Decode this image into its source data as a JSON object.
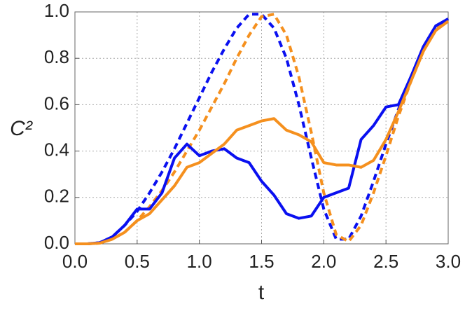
{
  "chart_data": {
    "type": "line",
    "xlabel": "t",
    "ylabel": "C²",
    "x": [
      0.0,
      0.1,
      0.2,
      0.3,
      0.4,
      0.5,
      0.6,
      0.7,
      0.8,
      0.9,
      1.0,
      1.1,
      1.2,
      1.3,
      1.4,
      1.5,
      1.6,
      1.7,
      1.8,
      1.9,
      2.0,
      2.1,
      2.2,
      2.3,
      2.4,
      2.5,
      2.6,
      2.7,
      2.8,
      2.9,
      3.0
    ],
    "series": [
      {
        "color": "#0a10f0",
        "dashed": true,
        "values": [
          0,
          0,
          0.005,
          0.03,
          0.08,
          0.14,
          0.22,
          0.31,
          0.41,
          0.52,
          0.63,
          0.74,
          0.84,
          0.93,
          0.99,
          0.99,
          0.93,
          0.8,
          0.6,
          0.37,
          0.15,
          0.02,
          0.02,
          0.12,
          0.27,
          0.43,
          0.58,
          0.72,
          0.84,
          0.93,
          0.97
        ]
      },
      {
        "color": "#f5901e",
        "dashed": true,
        "values": [
          0,
          0,
          0.003,
          0.02,
          0.05,
          0.1,
          0.16,
          0.23,
          0.31,
          0.4,
          0.49,
          0.59,
          0.69,
          0.8,
          0.9,
          0.98,
          0.99,
          0.9,
          0.72,
          0.48,
          0.22,
          0.04,
          0.01,
          0.08,
          0.22,
          0.38,
          0.55,
          0.7,
          0.83,
          0.93,
          0.97
        ]
      },
      {
        "color": "#0a10f0",
        "dashed": false,
        "values": [
          0,
          0,
          0.005,
          0.03,
          0.08,
          0.15,
          0.15,
          0.22,
          0.37,
          0.43,
          0.38,
          0.4,
          0.41,
          0.37,
          0.35,
          0.27,
          0.21,
          0.13,
          0.11,
          0.12,
          0.2,
          0.22,
          0.24,
          0.45,
          0.51,
          0.59,
          0.6,
          0.72,
          0.85,
          0.94,
          0.97
        ]
      },
      {
        "color": "#f5901e",
        "dashed": false,
        "values": [
          0,
          0,
          0.003,
          0.02,
          0.05,
          0.1,
          0.13,
          0.19,
          0.25,
          0.33,
          0.35,
          0.39,
          0.43,
          0.49,
          0.51,
          0.53,
          0.54,
          0.49,
          0.47,
          0.44,
          0.35,
          0.34,
          0.34,
          0.33,
          0.36,
          0.45,
          0.57,
          0.7,
          0.83,
          0.92,
          0.96
        ]
      }
    ],
    "xlim": [
      0,
      3
    ],
    "ylim": [
      0,
      1
    ],
    "xticks": [
      {
        "value": 0,
        "label": "0.0"
      },
      0.5,
      {
        "value": 1,
        "label": "1.0"
      },
      1.5,
      {
        "value": 2,
        "label": "2.0"
      },
      2.5,
      {
        "value": 3,
        "label": "3.0"
      }
    ],
    "yticks": [
      {
        "value": 0,
        "label": "0.0"
      },
      0.2,
      0.4,
      0.6,
      0.8,
      {
        "value": 1,
        "label": "1.0"
      }
    ],
    "grid": true
  }
}
